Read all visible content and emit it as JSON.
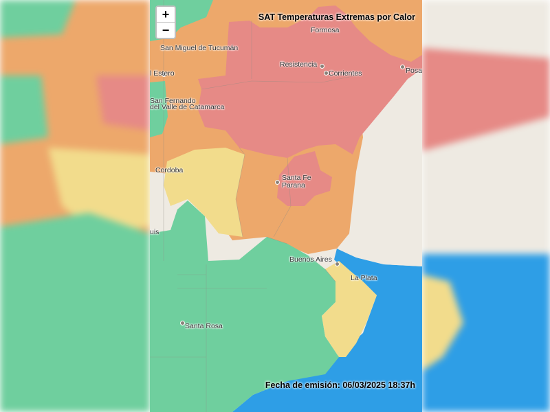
{
  "map": {
    "title": "SAT Temperaturas Extremas por Calor",
    "issue_date": "Fecha de emisión: 06/03/2025 18:37h",
    "zoom_in_label": "+",
    "zoom_out_label": "−",
    "colors": {
      "red": "#e68a86",
      "orange": "#eda86b",
      "yellow": "#f2dc8c",
      "green": "#6fcf9e",
      "water": "#2e9ee6",
      "land": "#eeeae2"
    },
    "cities": [
      {
        "id": "formosa",
        "name": "Formosa"
      },
      {
        "id": "san-miguel-de-tucuman",
        "name": "San Miguel de Tucumán"
      },
      {
        "id": "resistencia",
        "name": "Resistencia"
      },
      {
        "id": "corrientes",
        "name": "Corrientes"
      },
      {
        "id": "posadas",
        "name": "Posa"
      },
      {
        "id": "santiago-del-estero",
        "name": "l Estero"
      },
      {
        "id": "catamarca-1",
        "name": "San Fernando"
      },
      {
        "id": "catamarca-2",
        "name": "del Valle de Catamarca"
      },
      {
        "id": "cordoba",
        "name": "Cordoba"
      },
      {
        "id": "santa-fe",
        "name": "Santa Fe"
      },
      {
        "id": "parana",
        "name": "Parana"
      },
      {
        "id": "san-luis",
        "name": "uis"
      },
      {
        "id": "buenos-aires",
        "name": "Buenos Aires"
      },
      {
        "id": "la-plata",
        "name": "La Plata"
      },
      {
        "id": "santa-rosa",
        "name": "Santa Rosa"
      }
    ]
  }
}
